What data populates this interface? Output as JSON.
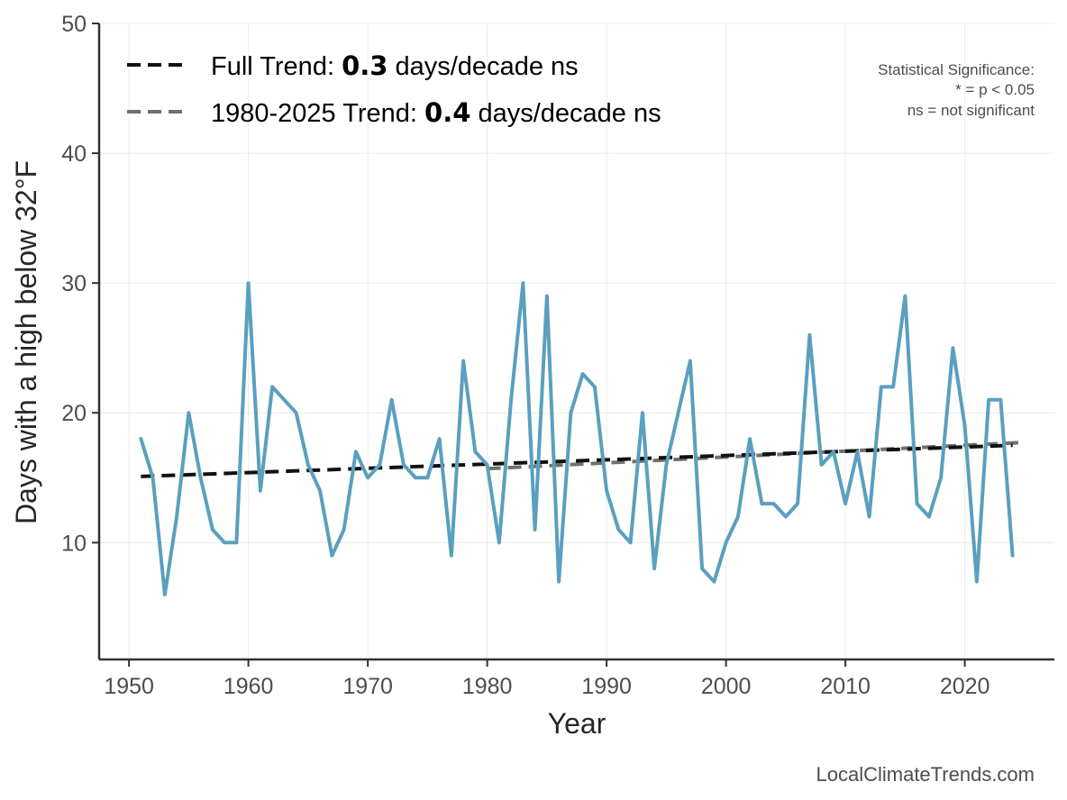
{
  "chart_data": {
    "type": "line",
    "title": "",
    "xlabel": "Year",
    "ylabel": "Days with a high below 32°F",
    "xlim": [
      1947.5,
      2027.5
    ],
    "ylim": [
      1,
      50
    ],
    "xticks": [
      1950,
      1960,
      1970,
      1980,
      1990,
      2000,
      2010,
      2020
    ],
    "yticks": [
      10,
      20,
      30,
      40,
      50
    ],
    "grid": true,
    "colors": {
      "series": "#5b9fbf",
      "full_trend": "#111111",
      "recent_trend": "#707070",
      "axis": "#333333",
      "grid": "#ececec"
    },
    "series": [
      {
        "name": "Days with a high below 32°F",
        "x": [
          1951,
          1952,
          1953,
          1954,
          1955,
          1956,
          1957,
          1958,
          1959,
          1960,
          1961,
          1962,
          1963,
          1964,
          1965,
          1966,
          1967,
          1968,
          1969,
          1970,
          1971,
          1972,
          1973,
          1974,
          1975,
          1976,
          1977,
          1978,
          1979,
          1980,
          1981,
          1982,
          1983,
          1984,
          1985,
          1986,
          1987,
          1988,
          1989,
          1990,
          1991,
          1992,
          1993,
          1994,
          1995,
          1996,
          1997,
          1998,
          1999,
          2000,
          2001,
          2002,
          2003,
          2004,
          2005,
          2006,
          2007,
          2008,
          2009,
          2010,
          2011,
          2012,
          2013,
          2014,
          2015,
          2016,
          2017,
          2018,
          2019,
          2020,
          2021,
          2022,
          2023,
          2024
        ],
        "values": [
          18,
          15,
          6,
          12,
          20,
          15,
          11,
          10,
          10,
          30,
          14,
          22,
          21,
          20,
          16,
          14,
          9,
          11,
          17,
          15,
          16,
          21,
          16,
          15,
          15,
          18,
          9,
          24,
          17,
          16,
          10,
          21,
          30,
          11,
          29,
          7,
          20,
          23,
          22,
          14,
          11,
          10,
          20,
          8,
          16,
          20,
          24,
          8,
          7,
          10,
          12,
          18,
          13,
          13,
          12,
          13,
          26,
          16,
          17,
          13,
          17,
          12,
          22,
          22,
          29,
          13,
          12,
          15,
          25,
          19,
          7,
          21,
          21,
          9
        ]
      }
    ],
    "trend_lines": [
      {
        "name": "Full Trend",
        "x": [
          1951,
          2024
        ],
        "y": [
          15.1,
          17.5
        ],
        "style": "dashed"
      },
      {
        "name": "1980-2025 Trend",
        "x": [
          1980,
          2024.5
        ],
        "y": [
          15.7,
          17.7
        ],
        "style": "dashed"
      }
    ],
    "legend": {
      "position": "top-left",
      "entries": [
        {
          "prefix": "Full Trend: ",
          "value": "0.3",
          "suffix": " days/decade ns"
        },
        {
          "prefix": "1980-2025 Trend: ",
          "value": "0.4",
          "suffix": " days/decade ns"
        }
      ]
    },
    "annotation": {
      "position": "top-right",
      "lines": [
        "Statistical Significance:",
        "* = p < 0.05",
        "ns = not significant"
      ]
    },
    "credit": "LocalClimateTrends.com"
  }
}
